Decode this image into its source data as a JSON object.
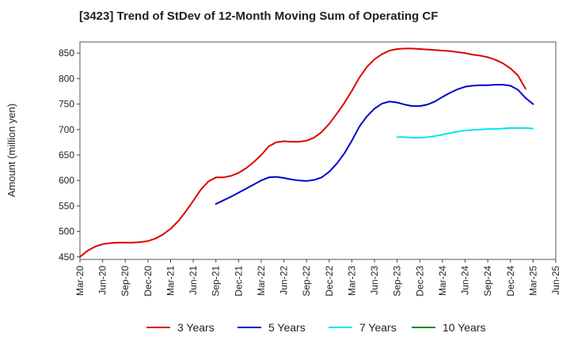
{
  "chart_data": {
    "type": "line",
    "title": "[3423]  Trend of StDev of 12-Month Moving Sum of Operating CF",
    "ylabel": "Amount (million yen)",
    "xlabel": "",
    "ylim": [
      445,
      872
    ],
    "yticks": [
      450,
      500,
      550,
      600,
      650,
      700,
      750,
      800,
      850
    ],
    "xticks": [
      "Mar-20",
      "Jun-20",
      "Sep-20",
      "Dec-20",
      "Mar-21",
      "Jun-21",
      "Sep-21",
      "Dec-21",
      "Mar-22",
      "Jun-22",
      "Sep-22",
      "Dec-22",
      "Mar-23",
      "Jun-23",
      "Sep-23",
      "Dec-23",
      "Mar-24",
      "Jun-24",
      "Sep-24",
      "Dec-24",
      "Mar-25",
      "Jun-25"
    ],
    "x_start": "Mar-20",
    "grid": true,
    "legend_position": "bottom",
    "series": [
      {
        "name": "3 Years",
        "color": "#dd0000",
        "start_index": 0,
        "values": [
          450,
          462,
          470,
          475,
          477,
          478,
          478,
          478,
          479,
          481,
          486,
          494,
          505,
          520,
          539,
          560,
          582,
          598,
          606,
          606,
          609,
          615,
          624,
          636,
          650,
          667,
          675,
          677,
          676,
          676,
          678,
          684,
          695,
          711,
          731,
          752,
          776,
          802,
          823,
          838,
          848,
          855,
          858,
          859,
          859,
          858,
          857,
          856,
          855,
          854,
          852,
          850,
          847,
          845,
          842,
          837,
          830,
          820,
          806,
          780
        ]
      },
      {
        "name": "5 Years",
        "color": "#0000cc",
        "start_index": 18,
        "values": [
          554,
          561,
          568,
          576,
          584,
          592,
          600,
          606,
          607,
          605,
          602,
          600,
          599,
          601,
          606,
          617,
          633,
          653,
          678,
          706,
          726,
          741,
          751,
          755,
          753,
          749,
          746,
          746,
          749,
          755,
          764,
          772,
          779,
          784,
          786,
          787,
          787,
          788,
          788,
          786,
          778,
          762,
          750
        ]
      },
      {
        "name": "7 Years",
        "color": "#00e5ee",
        "start_index": 42,
        "values": [
          685,
          685,
          684,
          684,
          685,
          687,
          690,
          693,
          696,
          698,
          699,
          700,
          701,
          701,
          702,
          703,
          703,
          703,
          702
        ]
      },
      {
        "name": "10 Years",
        "color": "#008800",
        "start_index": 0,
        "values": []
      }
    ]
  }
}
